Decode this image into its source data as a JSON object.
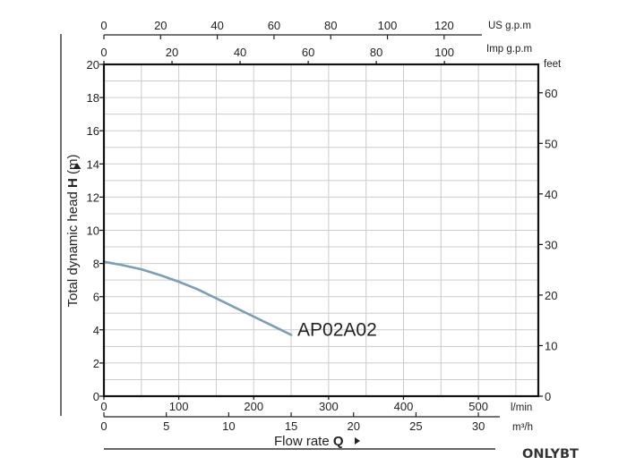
{
  "chart_data": {
    "type": "line",
    "title": "",
    "series": [
      {
        "name": "AP02A02",
        "x": [
          0,
          25,
          50,
          75,
          100,
          125,
          150,
          175,
          200,
          225,
          250
        ],
        "y": [
          8.1,
          7.9,
          7.65,
          7.3,
          6.9,
          6.45,
          5.9,
          5.35,
          4.8,
          4.25,
          3.7
        ]
      }
    ],
    "xlabel": "Flow rate Q",
    "ylabel": "Total dynamic head H (m)",
    "x_unit": "l/min",
    "xlim": [
      0,
      580
    ],
    "ylim": [
      0,
      20
    ],
    "grid": true,
    "axes": {
      "bottom": {
        "unit": "l/min",
        "ticks": [
          0,
          100,
          200,
          300,
          400,
          500
        ]
      },
      "bottom2": {
        "unit": "m³/h",
        "ticks": [
          0,
          5,
          10,
          15,
          20,
          25,
          30
        ]
      },
      "top": {
        "unit": "US g.p.m",
        "ticks": [
          0,
          20,
          40,
          60,
          80,
          100,
          120
        ]
      },
      "top2": {
        "unit": "Imp g.p.m",
        "ticks": [
          0,
          20,
          40,
          60,
          80,
          100
        ]
      },
      "left": {
        "unit": "m",
        "ticks": [
          0,
          2,
          4,
          6,
          8,
          10,
          12,
          14,
          16,
          18,
          20
        ]
      },
      "right": {
        "unit": "feet",
        "ticks": [
          0,
          10,
          20,
          30,
          40,
          50,
          60
        ]
      }
    },
    "colors": {
      "curve": "#7a9fb4",
      "grid": "#cccccc",
      "frame": "#111111"
    }
  },
  "labels": {
    "ylabel_prefix": "Total dynamic head ",
    "ylabel_bold": "H",
    "ylabel_suffix": " (m)",
    "xlabel_prefix": "Flow rate ",
    "xlabel_bold": "Q",
    "arrow_icon": "triangle-arrow-icon"
  },
  "brand": "ONLYBT"
}
